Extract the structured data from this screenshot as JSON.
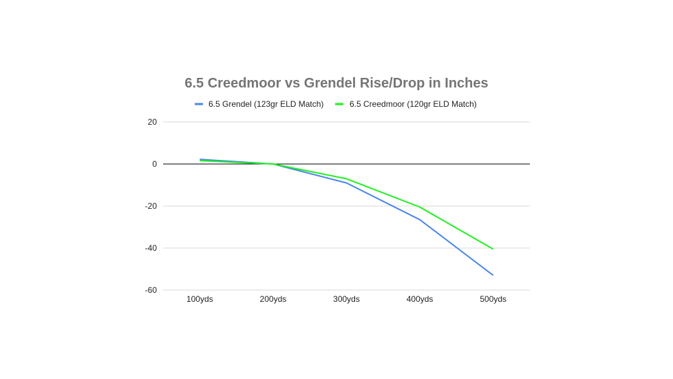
{
  "chart_data": {
    "type": "line",
    "title": "6.5 Creedmoor vs Grendel Rise/Drop in Inches",
    "xlabel": "",
    "ylabel": "",
    "categories": [
      "100yds",
      "200yds",
      "300yds",
      "400yds",
      "500yds"
    ],
    "ylim": [
      -60,
      20
    ],
    "yticks": [
      20,
      0,
      -20,
      -40,
      -60
    ],
    "grid": true,
    "legend_position": "top",
    "series": [
      {
        "name": "6.5 Grendel (123gr ELD Match)",
        "color": "#4a86e8",
        "values": [
          2.2,
          0,
          -9,
          -26.5,
          -53
        ]
      },
      {
        "name": "6.5 Creedmoor (120gr ELD Match)",
        "color": "#1ef01e",
        "values": [
          1.6,
          0,
          -7,
          -20.5,
          -40.5
        ]
      }
    ]
  }
}
